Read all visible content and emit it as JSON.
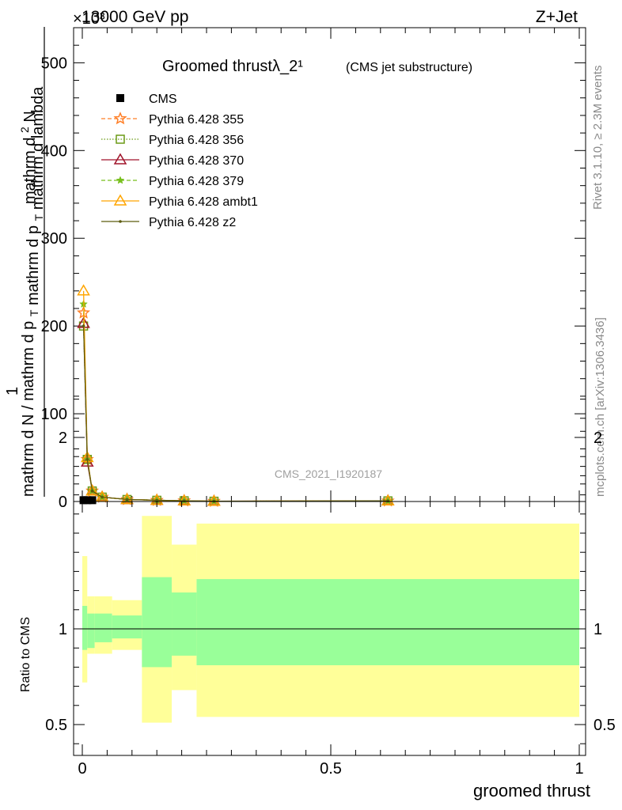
{
  "header": {
    "energy": "13000 GeV pp",
    "process": "Z+Jet",
    "multiplier": "×10³"
  },
  "side_labels": {
    "rivet": "Rivet 3.1.10, ≥ 2.3M events",
    "mcplots": "mcplots.cern.ch [arXiv:1306.3436]"
  },
  "colors": {
    "cms": "#000000",
    "p355": "#ff7f27",
    "p356": "#6b9a16",
    "p370": "#a0132a",
    "p379": "#77bf1c",
    "pambt1": "#ffa500",
    "pz2": "#5c5c0f",
    "band_inner": "#99ff99",
    "band_outer": "#ffff99"
  },
  "chart_data": [
    {
      "type": "line",
      "title": "Groomed thrustλ_2¹",
      "subtitle": "(CMS jet substructure)",
      "watermark": "CMS_2021_I1920187",
      "ylabel_top": "1 / mathrm d N / mathrm d p_T mathrm d p_T mathrm d lambda · mathrm d²N",
      "ylabel_parts": {
        "numerator_prefix": "1",
        "top": "mathrm d",
        "top_sup": "2",
        "top_tail": "N",
        "bottom_a": "mathrm d N / mathrm d p",
        "bottom_sub": "T",
        "bottom_b": "mathrm d p",
        "bottom_b_sub": "T",
        "bottom_c": "mathrm d lambda"
      },
      "xlim": [
        0,
        1
      ],
      "ylim": [
        0,
        540000
      ],
      "yticks": [
        0,
        100000,
        200000,
        300000,
        400000,
        500000
      ],
      "ytick_labels": [
        "0",
        "100",
        "200",
        "300",
        "400",
        "500"
      ],
      "grid": false,
      "legend_position": "top-left",
      "x": [
        0.0025,
        0.01,
        0.02,
        0.04,
        0.09,
        0.15,
        0.205,
        0.265,
        0.615
      ],
      "series": [
        {
          "name": "CMS",
          "marker": "square",
          "line": "none",
          "values": [
            1500,
            1500,
            1500,
            null,
            null,
            null,
            null,
            null,
            null
          ]
        },
        {
          "name": "Pythia 6.428 355",
          "marker": "star",
          "line": "dashed",
          "values": [
            215000,
            48000,
            12000,
            5000,
            2300,
            1400,
            800,
            300,
            700
          ]
        },
        {
          "name": "Pythia 6.428 356",
          "marker": "open-square",
          "line": "dotted",
          "values": [
            200000,
            48000,
            12000,
            5000,
            2300,
            1400,
            800,
            300,
            700
          ]
        },
        {
          "name": "Pythia 6.428 370",
          "marker": "open-triangle",
          "line": "solid",
          "values": [
            203000,
            45000,
            12000,
            5000,
            2300,
            1400,
            800,
            300,
            700
          ]
        },
        {
          "name": "Pythia 6.428 379",
          "marker": "small-star",
          "line": "dashed",
          "values": [
            225000,
            48000,
            12000,
            5000,
            2300,
            1400,
            800,
            300,
            700
          ]
        },
        {
          "name": "Pythia 6.428 ambt1",
          "marker": "open-triangle",
          "line": "solid",
          "values": [
            240000,
            50000,
            12000,
            5000,
            2300,
            1400,
            800,
            300,
            700
          ]
        },
        {
          "name": "Pythia 6.428 z2",
          "marker": "dot",
          "line": "solid",
          "values": [
            200000,
            48000,
            12000,
            5000,
            2300,
            1400,
            800,
            300,
            700
          ]
        }
      ]
    },
    {
      "type": "area",
      "ylabel": "Ratio to CMS",
      "xlabel": "groomed thrust",
      "xlim": [
        0,
        1
      ],
      "ylim": [
        0.35,
        2.3
      ],
      "xticks": [
        0,
        0.5,
        1
      ],
      "xtick_labels": [
        "0",
        "0.5",
        "1"
      ],
      "yticks": [
        0.5,
        1,
        2
      ],
      "ytick_labels": [
        "0.5",
        "1",
        "2"
      ],
      "reference_line": 1,
      "bins": [
        {
          "x0": 0.0,
          "x1": 0.01,
          "inner": [
            0.89,
            1.12
          ],
          "outer": [
            0.72,
            1.38
          ]
        },
        {
          "x0": 0.01,
          "x1": 0.025,
          "inner": [
            0.9,
            1.08
          ],
          "outer": [
            0.87,
            1.17
          ]
        },
        {
          "x0": 0.025,
          "x1": 0.06,
          "inner": [
            0.93,
            1.08
          ],
          "outer": [
            0.87,
            1.17
          ]
        },
        {
          "x0": 0.06,
          "x1": 0.12,
          "inner": [
            0.95,
            1.07
          ],
          "outer": [
            0.89,
            1.15
          ]
        },
        {
          "x0": 0.12,
          "x1": 0.18,
          "inner": [
            0.8,
            1.27
          ],
          "outer": [
            0.51,
            1.59
          ]
        },
        {
          "x0": 0.18,
          "x1": 0.23,
          "inner": [
            0.86,
            1.19
          ],
          "outer": [
            0.68,
            1.44
          ]
        },
        {
          "x0": 0.23,
          "x1": 1.0,
          "inner": [
            0.81,
            1.26
          ],
          "outer": [
            0.54,
            1.55
          ]
        }
      ]
    }
  ]
}
